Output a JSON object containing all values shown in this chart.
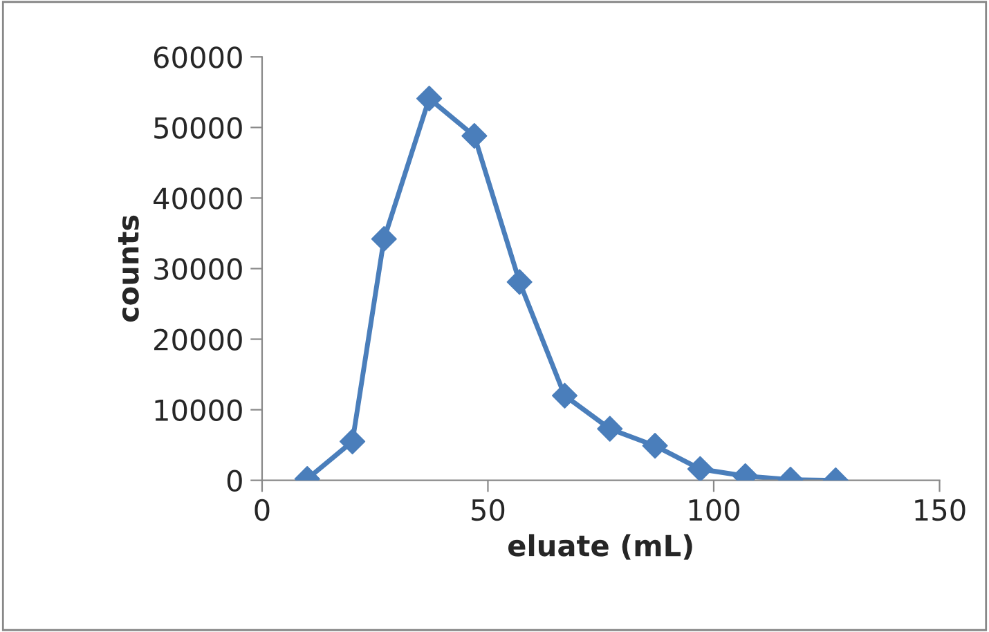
{
  "chart_data": {
    "type": "line",
    "xlabel": "eluate (mL)",
    "ylabel": "counts",
    "xlim": [
      0,
      150
    ],
    "xticks": [
      0,
      50,
      100,
      150
    ],
    "ylim": [
      0,
      60000
    ],
    "yticks": [
      0,
      10000,
      20000,
      30000,
      40000,
      50000,
      60000
    ],
    "grid": false,
    "legend": false,
    "marker": "diamond",
    "line_style": "solid",
    "series": [
      {
        "color": "#4a7ebb",
        "x": [
          10,
          20,
          27,
          37,
          47,
          57,
          67,
          77,
          87,
          97,
          107,
          117,
          127
        ],
        "values": [
          200,
          5500,
          34200,
          54100,
          48800,
          28100,
          12000,
          7300,
          4900,
          1600,
          600,
          100,
          0
        ]
      }
    ]
  }
}
